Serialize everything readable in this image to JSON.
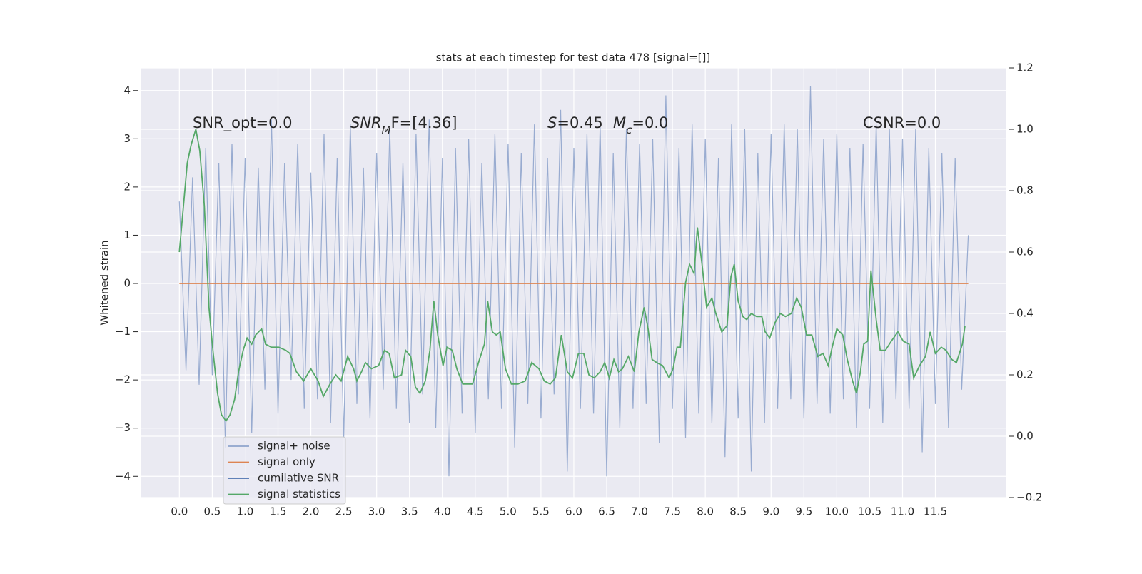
{
  "chart_data": {
    "type": "line",
    "title": "stats at each timestep for test data 478 [signal=[]]",
    "ylabel": "Whitened strain",
    "xlim": [
      -0.59,
      12.58
    ],
    "ylim": [
      -4.44,
      4.47
    ],
    "y2lim": [
      -0.2,
      1.2
    ],
    "grid": true,
    "legend": "lower left",
    "xticks": [
      {
        "value": 0,
        "label": "0.0"
      },
      0.5,
      {
        "value": 1,
        "label": "1.0"
      },
      1.5,
      {
        "value": 2,
        "label": "2.0"
      },
      2.5,
      {
        "value": 3,
        "label": "3.0"
      },
      3.5,
      {
        "value": 4,
        "label": "4.0"
      },
      4.5,
      {
        "value": 5,
        "label": "5.0"
      },
      5.5,
      {
        "value": 6,
        "label": "6.0"
      },
      6.5,
      {
        "value": 7,
        "label": "7.0"
      },
      7.5,
      {
        "value": 8,
        "label": "8.0"
      },
      8.5,
      {
        "value": 9,
        "label": "9.0"
      },
      9.5,
      {
        "value": 10,
        "label": "10.0"
      },
      10.5,
      {
        "value": 11,
        "label": "11.0"
      },
      11.5
    ],
    "yticks": [
      {
        "value": -4,
        "label": "−4"
      },
      {
        "value": -3,
        "label": "−3"
      },
      {
        "value": -2,
        "label": "−2"
      },
      {
        "value": -1,
        "label": "−1"
      },
      0,
      1,
      2,
      3,
      4
    ],
    "y2ticks": [
      {
        "value": -0.2,
        "label": "−0.2"
      },
      {
        "value": 0,
        "label": "0.0"
      },
      0.2,
      0.4,
      0.6,
      0.8,
      {
        "value": 1,
        "label": "1.0"
      },
      1.2
    ],
    "annotations": [
      [
        {
          "text": "SNR_opt=0.0"
        }
      ],
      [
        {
          "text": "SNR",
          "italic": true
        },
        {
          "text": "M",
          "italic": true,
          "sub": true
        },
        {
          "text": "F=[4.36]"
        }
      ],
      [
        {
          "text": "S",
          "italic": true
        },
        {
          "text": "=0.45"
        }
      ],
      [
        {
          "text": "M",
          "italic": true
        },
        {
          "text": "c",
          "italic": true,
          "sub": true
        },
        {
          "text": "=0.0"
        }
      ],
      [
        {
          "text": "CSNR=0.0"
        }
      ]
    ],
    "series": [
      {
        "name": "signal+ noise",
        "color": "#8fa4cc",
        "x": [
          0.0,
          0.1,
          0.2,
          0.3,
          0.4,
          0.5,
          0.6,
          0.7,
          0.8,
          0.9,
          1.0,
          1.1,
          1.2,
          1.3,
          1.4,
          1.5,
          1.6,
          1.7,
          1.8,
          1.9,
          2.0,
          2.1,
          2.2,
          2.3,
          2.4,
          2.5,
          2.6,
          2.7,
          2.8,
          2.9,
          3.0,
          3.1,
          3.2,
          3.3,
          3.4,
          3.5,
          3.6,
          3.7,
          3.8,
          3.9,
          4.0,
          4.1,
          4.2,
          4.3,
          4.4,
          4.5,
          4.6,
          4.7,
          4.8,
          4.9,
          5.0,
          5.1,
          5.2,
          5.3,
          5.4,
          5.5,
          5.6,
          5.7,
          5.8,
          5.9,
          6.0,
          6.1,
          6.2,
          6.3,
          6.4,
          6.5,
          6.6,
          6.7,
          6.8,
          6.9,
          7.0,
          7.1,
          7.2,
          7.3,
          7.4,
          7.5,
          7.6,
          7.7,
          7.8,
          7.9,
          8.0,
          8.1,
          8.2,
          8.3,
          8.4,
          8.5,
          8.6,
          8.7,
          8.8,
          8.9,
          9.0,
          9.1,
          9.2,
          9.3,
          9.4,
          9.5,
          9.6,
          9.7,
          9.8,
          9.9,
          10.0,
          10.1,
          10.2,
          10.3,
          10.4,
          10.5,
          10.6,
          10.7,
          10.8,
          10.9,
          11.0,
          11.1,
          11.2,
          11.3,
          11.4,
          11.5,
          11.6,
          11.7,
          11.8,
          11.9,
          12.0
        ],
        "values": [
          1.7,
          -1.8,
          2.2,
          -2.1,
          2.8,
          -1.9,
          2.5,
          -3.4,
          2.9,
          -2.3,
          2.6,
          -3.1,
          2.4,
          -2.2,
          3.4,
          -2.7,
          2.5,
          -2.0,
          2.9,
          -2.6,
          2.3,
          -2.4,
          3.1,
          -2.9,
          2.6,
          -3.2,
          3.3,
          -2.5,
          2.4,
          -2.8,
          2.7,
          -2.2,
          3.2,
          -2.6,
          2.5,
          -2.9,
          3.1,
          -2.3,
          3.4,
          -3.0,
          2.6,
          -4.0,
          2.8,
          -2.7,
          3.0,
          -3.1,
          2.5,
          -2.4,
          3.1,
          -2.6,
          2.9,
          -3.4,
          2.7,
          -2.5,
          3.3,
          -2.8,
          2.6,
          -2.3,
          3.6,
          -3.9,
          2.8,
          -2.6,
          3.1,
          -2.7,
          3.3,
          -4.0,
          2.7,
          -3.0,
          3.2,
          -2.6,
          2.9,
          -2.5,
          3.0,
          -3.3,
          3.9,
          -2.6,
          2.8,
          -3.2,
          3.3,
          -2.7,
          3.0,
          -2.9,
          2.6,
          -3.6,
          3.3,
          -2.8,
          3.2,
          -3.9,
          2.7,
          -2.9,
          3.1,
          -2.6,
          3.3,
          -2.4,
          3.2,
          -2.8,
          4.1,
          -2.5,
          3.0,
          -2.7,
          3.1,
          -2.4,
          2.8,
          -3.0,
          2.9,
          -2.6,
          3.3,
          -2.9,
          3.2,
          -2.4,
          3.0,
          -2.6,
          3.2,
          -3.5,
          2.8,
          -2.5,
          2.7,
          -3.0,
          2.6,
          -2.2,
          1.0
        ]
      },
      {
        "name": "signal only",
        "color": "#dd8452",
        "x": [
          0.0,
          12.0
        ],
        "values": [
          0,
          0
        ]
      },
      {
        "name": "cumilative SNR",
        "color": "#4c72b0",
        "x": [],
        "values": []
      },
      {
        "name": "signal statistics",
        "color": "#55a868",
        "axis": "y2",
        "x": [
          0.0,
          0.12,
          0.18,
          0.25,
          0.31,
          0.38,
          0.45,
          0.51,
          0.58,
          0.64,
          0.71,
          0.77,
          0.84,
          0.9,
          0.97,
          1.03,
          1.1,
          1.16,
          1.25,
          1.31,
          1.4,
          1.51,
          1.62,
          1.68,
          1.78,
          1.89,
          2.0,
          2.11,
          2.19,
          2.29,
          2.38,
          2.46,
          2.56,
          2.65,
          2.7,
          2.77,
          2.83,
          2.92,
          3.03,
          3.12,
          3.19,
          3.27,
          3.38,
          3.44,
          3.52,
          3.59,
          3.66,
          3.74,
          3.81,
          3.87,
          3.93,
          4.01,
          4.07,
          4.15,
          4.22,
          4.31,
          4.4,
          4.46,
          4.55,
          4.64,
          4.69,
          4.76,
          4.82,
          4.88,
          4.96,
          5.05,
          5.15,
          5.26,
          5.36,
          5.47,
          5.55,
          5.64,
          5.72,
          5.81,
          5.9,
          5.98,
          6.07,
          6.15,
          6.23,
          6.31,
          6.4,
          6.47,
          6.54,
          6.61,
          6.68,
          6.74,
          6.83,
          6.92,
          6.99,
          7.07,
          7.13,
          7.19,
          7.26,
          7.35,
          7.45,
          7.51,
          7.57,
          7.62,
          7.7,
          7.76,
          7.83,
          7.88,
          7.95,
          8.02,
          8.1,
          8.16,
          8.25,
          8.33,
          8.39,
          8.44,
          8.5,
          8.57,
          8.63,
          8.7,
          8.78,
          8.86,
          8.91,
          8.98,
          9.06,
          9.14,
          9.22,
          9.31,
          9.39,
          9.46,
          9.54,
          9.62,
          9.71,
          9.79,
          9.87,
          9.93,
          10.0,
          10.09,
          10.16,
          10.24,
          10.3,
          10.36,
          10.41,
          10.47,
          10.52,
          10.6,
          10.66,
          10.74,
          10.83,
          10.93,
          11.01,
          11.1,
          11.17,
          11.26,
          11.35,
          11.42,
          11.5,
          11.59,
          11.66,
          11.75,
          11.82,
          11.91,
          11.95
        ],
        "values": [
          0.6,
          0.89,
          0.95,
          1.0,
          0.93,
          0.75,
          0.42,
          0.28,
          0.14,
          0.07,
          0.05,
          0.07,
          0.12,
          0.21,
          0.28,
          0.32,
          0.3,
          0.33,
          0.35,
          0.3,
          0.29,
          0.29,
          0.28,
          0.27,
          0.21,
          0.18,
          0.22,
          0.18,
          0.13,
          0.17,
          0.2,
          0.18,
          0.26,
          0.22,
          0.18,
          0.21,
          0.24,
          0.22,
          0.23,
          0.28,
          0.27,
          0.19,
          0.2,
          0.28,
          0.26,
          0.16,
          0.14,
          0.18,
          0.28,
          0.44,
          0.33,
          0.23,
          0.29,
          0.28,
          0.22,
          0.17,
          0.17,
          0.17,
          0.24,
          0.3,
          0.44,
          0.34,
          0.33,
          0.34,
          0.22,
          0.17,
          0.17,
          0.18,
          0.24,
          0.22,
          0.18,
          0.17,
          0.19,
          0.33,
          0.21,
          0.19,
          0.27,
          0.27,
          0.2,
          0.19,
          0.21,
          0.24,
          0.19,
          0.25,
          0.21,
          0.22,
          0.26,
          0.21,
          0.34,
          0.42,
          0.35,
          0.25,
          0.24,
          0.23,
          0.19,
          0.22,
          0.29,
          0.29,
          0.5,
          0.56,
          0.53,
          0.68,
          0.56,
          0.42,
          0.45,
          0.4,
          0.34,
          0.36,
          0.52,
          0.56,
          0.44,
          0.39,
          0.38,
          0.4,
          0.39,
          0.39,
          0.34,
          0.32,
          0.37,
          0.4,
          0.39,
          0.4,
          0.45,
          0.42,
          0.33,
          0.33,
          0.26,
          0.27,
          0.23,
          0.29,
          0.35,
          0.33,
          0.25,
          0.18,
          0.14,
          0.21,
          0.3,
          0.31,
          0.54,
          0.38,
          0.28,
          0.28,
          0.31,
          0.34,
          0.31,
          0.3,
          0.19,
          0.23,
          0.26,
          0.34,
          0.27,
          0.29,
          0.28,
          0.25,
          0.24,
          0.3,
          0.36
        ]
      }
    ]
  }
}
